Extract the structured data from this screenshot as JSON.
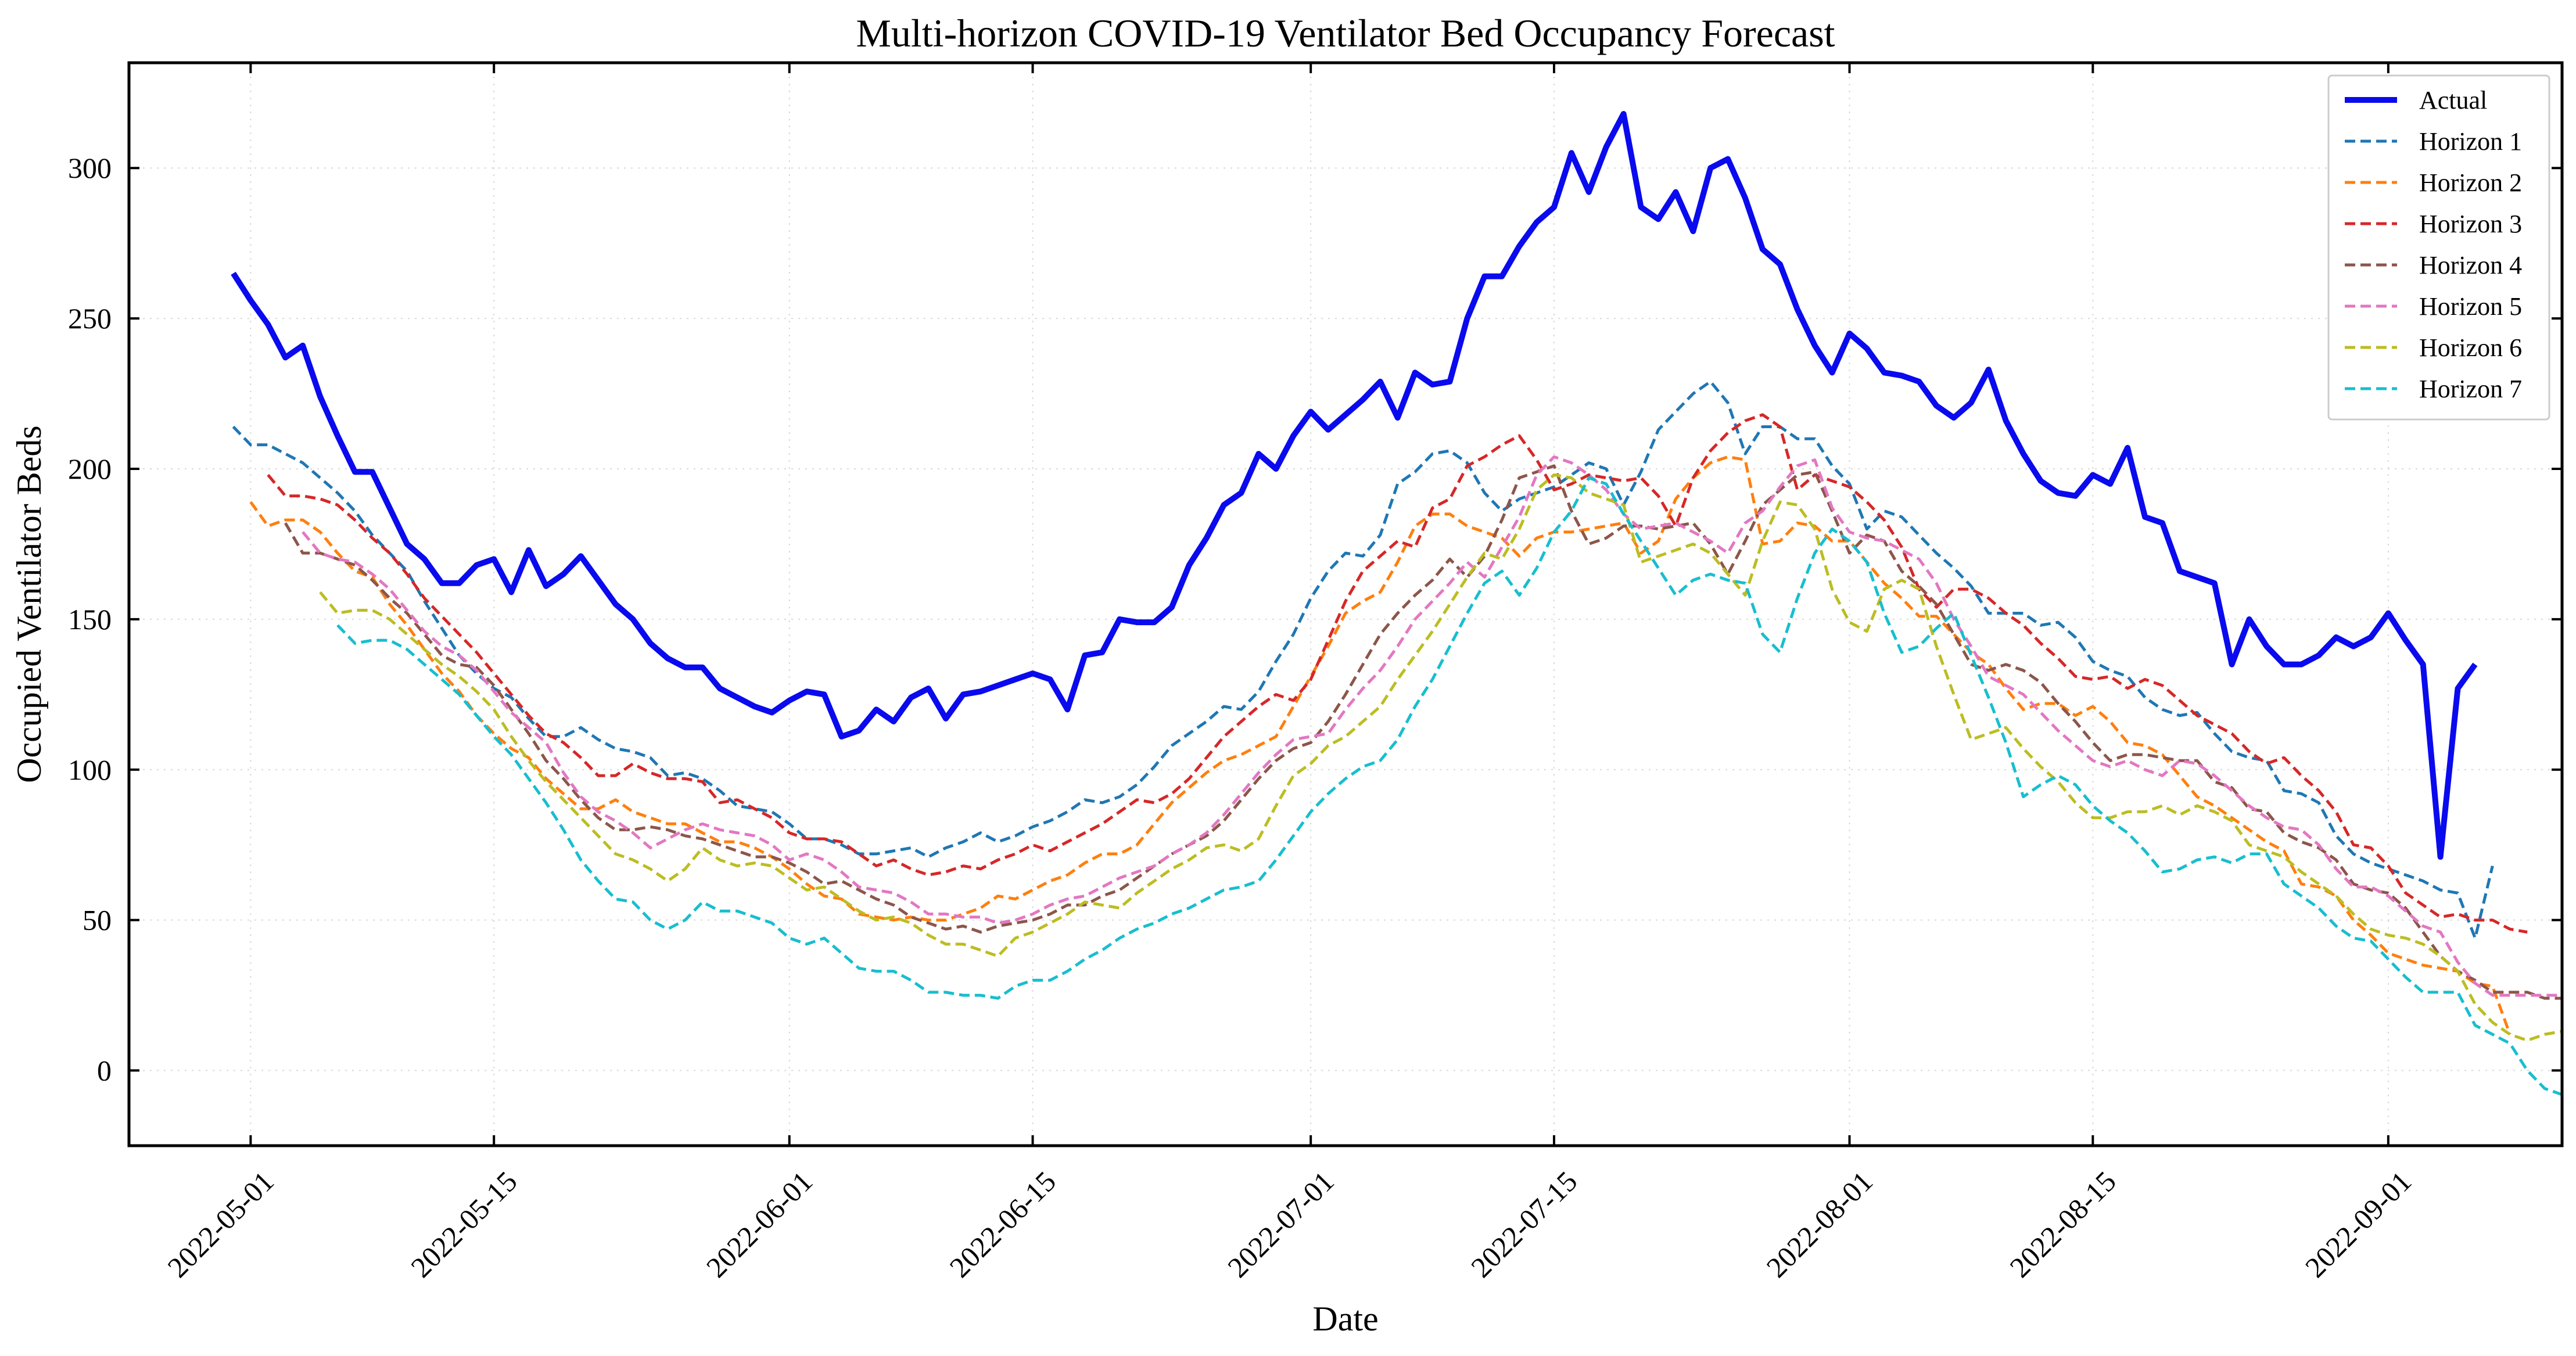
{
  "chart_data": {
    "type": "line",
    "title": "Multi-horizon COVID-19 Ventilator Bed Occupancy Forecast",
    "xlabel": "Date",
    "ylabel": "Occupied Ventilator Beds",
    "x_start": "2022-04-30",
    "xlim": [
      "2022-04-24",
      "2022-09-11"
    ],
    "ylim": [
      -25,
      335
    ],
    "xticks": [
      "2022-05-01",
      "2022-05-15",
      "2022-06-01",
      "2022-06-15",
      "2022-07-01",
      "2022-07-15",
      "2022-08-01",
      "2022-08-15",
      "2022-09-01"
    ],
    "yticks": [
      0,
      50,
      100,
      150,
      200,
      250,
      300
    ],
    "grid": true,
    "legend_position": "top-right",
    "series": [
      {
        "name": "Actual",
        "color": "#0a0aee",
        "dashed": false,
        "start": "2022-04-30",
        "values": [
          265,
          256,
          248,
          237,
          241,
          224,
          211,
          199,
          199,
          187,
          175,
          170,
          162,
          162,
          168,
          170,
          159,
          173,
          161,
          165,
          171,
          163,
          155,
          150,
          142,
          137,
          134,
          134,
          127,
          124,
          121,
          119,
          123,
          126,
          125,
          111,
          113,
          120,
          116,
          124,
          127,
          117,
          125,
          126,
          128,
          130,
          132,
          130,
          120,
          138,
          139,
          150,
          149,
          149,
          154,
          168,
          177,
          188,
          192,
          205,
          200,
          211,
          219,
          213,
          218,
          223,
          229,
          217,
          232,
          228,
          229,
          250,
          264,
          264,
          274,
          282,
          287,
          305,
          292,
          307,
          318,
          287,
          283,
          292,
          279,
          300,
          303,
          290,
          273,
          268,
          253,
          241,
          232,
          245,
          240,
          232,
          231,
          229,
          221,
          217,
          222,
          233,
          216,
          205,
          196,
          192,
          191,
          198,
          195,
          207,
          184,
          182,
          166,
          164,
          162,
          135,
          150,
          141,
          135,
          135,
          138,
          144,
          141,
          144,
          152,
          143,
          135,
          71,
          127,
          135
        ]
      },
      {
        "name": "Horizon 1",
        "color": "#1f77b4",
        "dashed": true,
        "start": "2022-04-30",
        "values": [
          214,
          208,
          208,
          205,
          202,
          197,
          192,
          186,
          178,
          172,
          166,
          156,
          147,
          138,
          132,
          127,
          124,
          117,
          111,
          111,
          114,
          110,
          107,
          106,
          104,
          98,
          99,
          97,
          93,
          88,
          87,
          86,
          82,
          77,
          77,
          75,
          72,
          72,
          73,
          74,
          71,
          74,
          76,
          79,
          76,
          78,
          81,
          83,
          86,
          90,
          89,
          91,
          95,
          101,
          108,
          112,
          116,
          121,
          120,
          126,
          136,
          145,
          157,
          166,
          172,
          171,
          178,
          195,
          199,
          205,
          206,
          202,
          192,
          186,
          190,
          192,
          194,
          198,
          202,
          200,
          188,
          199,
          213,
          219,
          225,
          229,
          222,
          205,
          214,
          214,
          210,
          210,
          201,
          195,
          180,
          186,
          184,
          178,
          172,
          167,
          161,
          152,
          152,
          152,
          148,
          149,
          144,
          136,
          133,
          131,
          124,
          120,
          118,
          119,
          112,
          106,
          104,
          103,
          93,
          92,
          89,
          78,
          72,
          69,
          67,
          65,
          63,
          60,
          59,
          44,
          68
        ]
      },
      {
        "name": "Horizon 2",
        "color": "#ff7f0e",
        "dashed": true,
        "start": "2022-05-01",
        "values": [
          189,
          181,
          183,
          183,
          179,
          172,
          166,
          164,
          155,
          148,
          140,
          132,
          126,
          118,
          112,
          107,
          104,
          97,
          92,
          87,
          87,
          90,
          86,
          84,
          82,
          82,
          79,
          76,
          76,
          74,
          71,
          67,
          62,
          58,
          57,
          52,
          51,
          50,
          51,
          50,
          50,
          52,
          54,
          58,
          57,
          60,
          63,
          65,
          69,
          72,
          72,
          75,
          82,
          89,
          94,
          99,
          103,
          105,
          108,
          111,
          121,
          131,
          141,
          152,
          156,
          159,
          169,
          181,
          185,
          185,
          181,
          179,
          177,
          171,
          177,
          179,
          179,
          180,
          181,
          182,
          172,
          176,
          190,
          197,
          202,
          204,
          203,
          175,
          176,
          182,
          181,
          176,
          176,
          169,
          162,
          157,
          151,
          151,
          145,
          139,
          135,
          127,
          120,
          122,
          122,
          118,
          121,
          116,
          109,
          108,
          105,
          98,
          91,
          88,
          84,
          80,
          76,
          73,
          62,
          61,
          58,
          50,
          45,
          39,
          37,
          35,
          34,
          33,
          29,
          28,
          12
        ]
      },
      {
        "name": "Horizon 3",
        "color": "#d62728",
        "dashed": true,
        "start": "2022-05-02",
        "values": [
          198,
          191,
          191,
          190,
          188,
          183,
          177,
          172,
          165,
          157,
          151,
          145,
          139,
          132,
          125,
          118,
          112,
          109,
          104,
          98,
          98,
          102,
          99,
          97,
          97,
          96,
          89,
          90,
          87,
          84,
          79,
          77,
          77,
          76,
          72,
          68,
          70,
          67,
          65,
          66,
          68,
          67,
          70,
          72,
          75,
          73,
          76,
          79,
          82,
          86,
          90,
          89,
          92,
          97,
          104,
          111,
          116,
          121,
          125,
          123,
          130,
          143,
          156,
          166,
          171,
          176,
          174,
          187,
          190,
          201,
          204,
          208,
          211,
          203,
          193,
          195,
          198,
          197,
          196,
          197,
          191,
          181,
          197,
          206,
          212,
          216,
          218,
          214,
          193,
          198,
          196,
          194,
          189,
          183,
          174,
          160,
          154,
          160,
          160,
          157,
          152,
          148,
          142,
          137,
          131,
          130,
          131,
          127,
          130,
          128,
          123,
          118,
          115,
          112,
          106,
          102,
          104,
          98,
          93,
          86,
          75,
          74,
          68,
          59,
          55,
          51,
          52,
          50,
          50,
          47,
          46
        ]
      },
      {
        "name": "Horizon 4",
        "color": "#8c564b",
        "dashed": true,
        "start": "2022-05-03",
        "values": [
          182,
          172,
          172,
          170,
          168,
          163,
          157,
          152,
          145,
          138,
          135,
          134,
          128,
          120,
          112,
          103,
          97,
          90,
          84,
          80,
          80,
          81,
          80,
          78,
          77,
          75,
          73,
          71,
          71,
          69,
          66,
          62,
          63,
          60,
          57,
          55,
          51,
          49,
          47,
          48,
          46,
          48,
          49,
          50,
          52,
          55,
          55,
          58,
          60,
          64,
          68,
          72,
          75,
          78,
          83,
          90,
          97,
          103,
          107,
          109,
          116,
          125,
          135,
          145,
          152,
          158,
          163,
          170,
          164,
          171,
          183,
          197,
          199,
          201,
          186,
          175,
          177,
          181,
          181,
          180,
          181,
          182,
          175,
          165,
          176,
          188,
          193,
          198,
          199,
          186,
          172,
          178,
          176,
          166,
          161,
          155,
          145,
          135,
          133,
          135,
          133,
          129,
          122,
          116,
          109,
          103,
          105,
          105,
          104,
          103,
          103,
          96,
          94,
          87,
          86,
          79,
          76,
          74,
          70,
          62,
          60,
          59,
          54,
          46,
          38,
          33,
          30,
          26,
          26,
          26,
          24,
          24
        ]
      },
      {
        "name": "Horizon 5",
        "color": "#e377c2",
        "dashed": true,
        "start": "2022-05-04",
        "values": [
          179,
          172,
          170,
          169,
          165,
          160,
          153,
          146,
          141,
          138,
          133,
          126,
          119,
          114,
          109,
          99,
          91,
          86,
          83,
          79,
          74,
          77,
          80,
          82,
          80,
          79,
          78,
          75,
          70,
          72,
          70,
          66,
          61,
          60,
          59,
          56,
          52,
          52,
          51,
          51,
          49,
          50,
          52,
          55,
          57,
          58,
          61,
          64,
          66,
          68,
          72,
          75,
          79,
          85,
          92,
          99,
          105,
          110,
          111,
          112,
          120,
          127,
          133,
          141,
          150,
          156,
          162,
          169,
          164,
          174,
          184,
          198,
          204,
          202,
          198,
          193,
          185,
          180,
          181,
          182,
          179,
          176,
          172,
          182,
          186,
          194,
          201,
          203,
          187,
          179,
          177,
          176,
          173,
          170,
          162,
          150,
          141,
          131,
          128,
          125,
          119,
          113,
          108,
          103,
          101,
          103,
          100,
          98,
          103,
          102,
          98,
          93,
          88,
          84,
          81,
          80,
          75,
          67,
          61,
          61,
          58,
          53,
          48,
          46,
          36,
          29,
          25,
          25,
          25,
          25,
          25
        ]
      },
      {
        "name": "Horizon 6",
        "color": "#bcbd22",
        "dashed": true,
        "start": "2022-05-05",
        "values": [
          159,
          152,
          153,
          153,
          150,
          145,
          140,
          135,
          131,
          126,
          120,
          111,
          103,
          96,
          90,
          84,
          78,
          72,
          70,
          67,
          63,
          67,
          74,
          70,
          68,
          69,
          68,
          64,
          60,
          61,
          57,
          53,
          50,
          51,
          49,
          45,
          42,
          42,
          40,
          38,
          44,
          46,
          49,
          52,
          56,
          55,
          54,
          59,
          63,
          67,
          70,
          74,
          75,
          73,
          77,
          88,
          98,
          102,
          108,
          111,
          116,
          121,
          130,
          138,
          146,
          155,
          164,
          172,
          170,
          180,
          193,
          198,
          197,
          192,
          190,
          188,
          169,
          171,
          173,
          175,
          172,
          165,
          158,
          176,
          189,
          188,
          180,
          160,
          149,
          146,
          160,
          163,
          160,
          141,
          125,
          110,
          112,
          114,
          107,
          101,
          96,
          89,
          84,
          84,
          86,
          86,
          88,
          85,
          88,
          86,
          83,
          75,
          73,
          71,
          66,
          62,
          58,
          52,
          47,
          45,
          44,
          42,
          38,
          33,
          22,
          16,
          12,
          10,
          12,
          13,
          14
        ]
      },
      {
        "name": "Horizon 7",
        "color": "#17becf",
        "dashed": true,
        "start": "2022-05-06",
        "values": [
          148,
          142,
          143,
          143,
          140,
          135,
          130,
          125,
          118,
          111,
          105,
          97,
          89,
          80,
          70,
          63,
          57,
          56,
          50,
          47,
          50,
          56,
          53,
          53,
          51,
          49,
          44,
          42,
          44,
          39,
          34,
          33,
          33,
          30,
          26,
          26,
          25,
          25,
          24,
          28,
          30,
          30,
          33,
          37,
          40,
          44,
          47,
          49,
          52,
          54,
          57,
          60,
          61,
          63,
          70,
          78,
          86,
          92,
          97,
          101,
          103,
          110,
          121,
          130,
          141,
          152,
          162,
          166,
          158,
          167,
          179,
          186,
          197,
          195,
          185,
          176,
          167,
          158,
          163,
          165,
          163,
          162,
          145,
          139,
          157,
          172,
          180,
          176,
          169,
          152,
          139,
          141,
          147,
          152,
          138,
          124,
          109,
          91,
          95,
          98,
          95,
          88,
          83,
          79,
          73,
          66,
          67,
          70,
          71,
          69,
          72,
          72,
          62,
          58,
          54,
          48,
          44,
          43,
          37,
          31,
          26,
          26,
          26,
          15,
          12,
          9,
          0,
          -6,
          -8,
          -6,
          -5
        ]
      }
    ]
  }
}
